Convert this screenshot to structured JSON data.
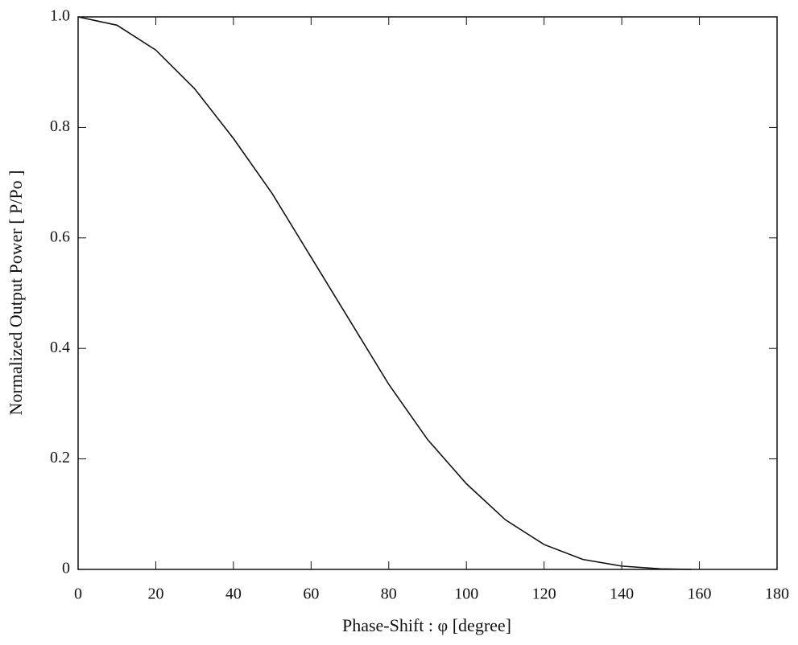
{
  "chart_data": {
    "type": "line",
    "x_label": "Phase-Shift  :  φ  [degree]",
    "y_label": "Normalized Output Power  [ P/Po ]",
    "x": [
      0,
      10,
      20,
      30,
      40,
      50,
      60,
      70,
      80,
      90,
      100,
      110,
      120,
      130,
      140,
      150,
      158
    ],
    "series": [
      {
        "color": "#111111",
        "values": [
          1.0,
          0.985,
          0.94,
          0.87,
          0.78,
          0.68,
          0.565,
          0.45,
          0.335,
          0.235,
          0.155,
          0.09,
          0.045,
          0.018,
          0.006,
          0.001,
          0
        ]
      }
    ],
    "xlim": [
      0,
      180
    ],
    "xticks": [
      0,
      20,
      40,
      60,
      80,
      100,
      120,
      140,
      160,
      180
    ],
    "ylim": [
      0,
      1
    ],
    "yticks": [
      0,
      0.2,
      0.4,
      0.6,
      0.8,
      {
        "value": 1,
        "label": "1.0"
      }
    ]
  }
}
